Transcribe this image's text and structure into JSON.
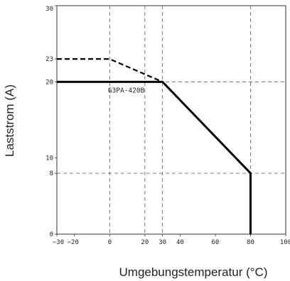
{
  "chart_data": {
    "type": "line",
    "xlabel": "Umgebungstemperatur (°C)",
    "ylabel": "Laststrom (A)",
    "xlim": [
      -30,
      100
    ],
    "ylim": [
      0,
      30
    ],
    "x_ticks": [
      -30,
      -20,
      0,
      20,
      30,
      40,
      60,
      80,
      100
    ],
    "x_tick_labels": [
      "−30",
      "−20",
      "0",
      "20",
      "30",
      "40",
      "60",
      "80",
      "100"
    ],
    "y_ticks": [
      0,
      8,
      10,
      20,
      23,
      30
    ],
    "y_tick_labels": [
      "0",
      "8",
      "10",
      "20",
      "23",
      "30"
    ],
    "grid": "dashed reference lines",
    "series": [
      {
        "name": "G3PA-420B",
        "style": "solid",
        "color": "#000000",
        "x": [
          -30,
          30,
          80,
          80
        ],
        "y": [
          20,
          20,
          8,
          0
        ]
      },
      {
        "style": "dashed",
        "color": "#000000",
        "x": [
          -30,
          0,
          30
        ],
        "y": [
          23,
          23,
          20
        ]
      }
    ],
    "reference_lines": {
      "vertical": [
        0,
        20,
        30,
        80
      ],
      "horizontal": [
        8,
        20
      ]
    }
  }
}
